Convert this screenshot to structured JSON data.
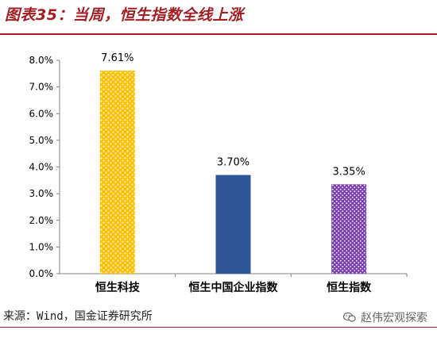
{
  "title": "图表35：当周，恒生指数全线上涨",
  "source": "来源：Wind，国金证券研究所",
  "watermark": "赵伟宏观探索",
  "icon": "wechat-icon",
  "chart_data": {
    "type": "bar",
    "categories": [
      "恒生科技",
      "恒生中国企业指数",
      "恒生指数"
    ],
    "values": [
      7.61,
      3.7,
      3.35
    ],
    "value_labels": [
      "7.61%",
      "3.70%",
      "3.35%"
    ],
    "yticks": [
      "0.0%",
      "1.0%",
      "2.0%",
      "3.0%",
      "4.0%",
      "5.0%",
      "6.0%",
      "7.0%",
      "8.0%"
    ],
    "ylim": [
      0,
      8
    ],
    "grid": false,
    "bar_colors": [
      "#ffc000",
      "#2e5597",
      "#9b6bc7"
    ],
    "bar_patterns": [
      "dots",
      "solid",
      "dots"
    ]
  }
}
